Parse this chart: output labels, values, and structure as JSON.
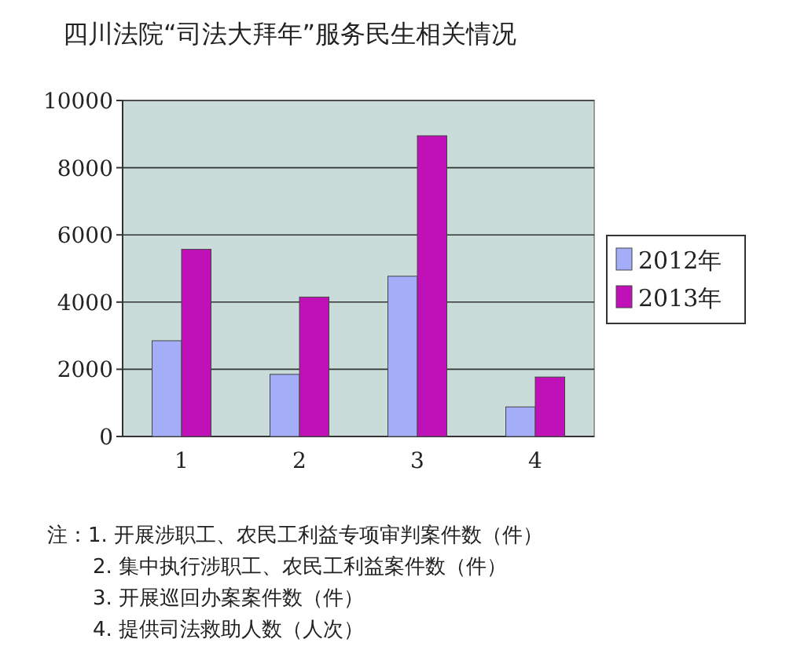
{
  "chart_data": {
    "type": "bar",
    "title": "四川法院“司法大拜年”服务民生相关情况",
    "categories": [
      "1",
      "2",
      "3",
      "4"
    ],
    "series": [
      {
        "name": "2012年",
        "color": "#a4aef8",
        "values": [
          2850,
          1850,
          4770,
          880
        ]
      },
      {
        "name": "2013年",
        "color": "#c010b8",
        "values": [
          5570,
          4150,
          8950,
          1770
        ]
      }
    ],
    "ylim": [
      0,
      10000
    ],
    "yticks": [
      0,
      2000,
      4000,
      6000,
      8000,
      10000
    ],
    "grid": "y",
    "legend": "right",
    "annotations": [
      "注：1. 开展涉职工、农民工利益专项审判案件数（件）",
      "2. 集中执行涉职工、农民工利益案件数（件）",
      "3. 开展巡回办案案件数（件）",
      "4. 提供司法救助人数（人次）"
    ]
  }
}
